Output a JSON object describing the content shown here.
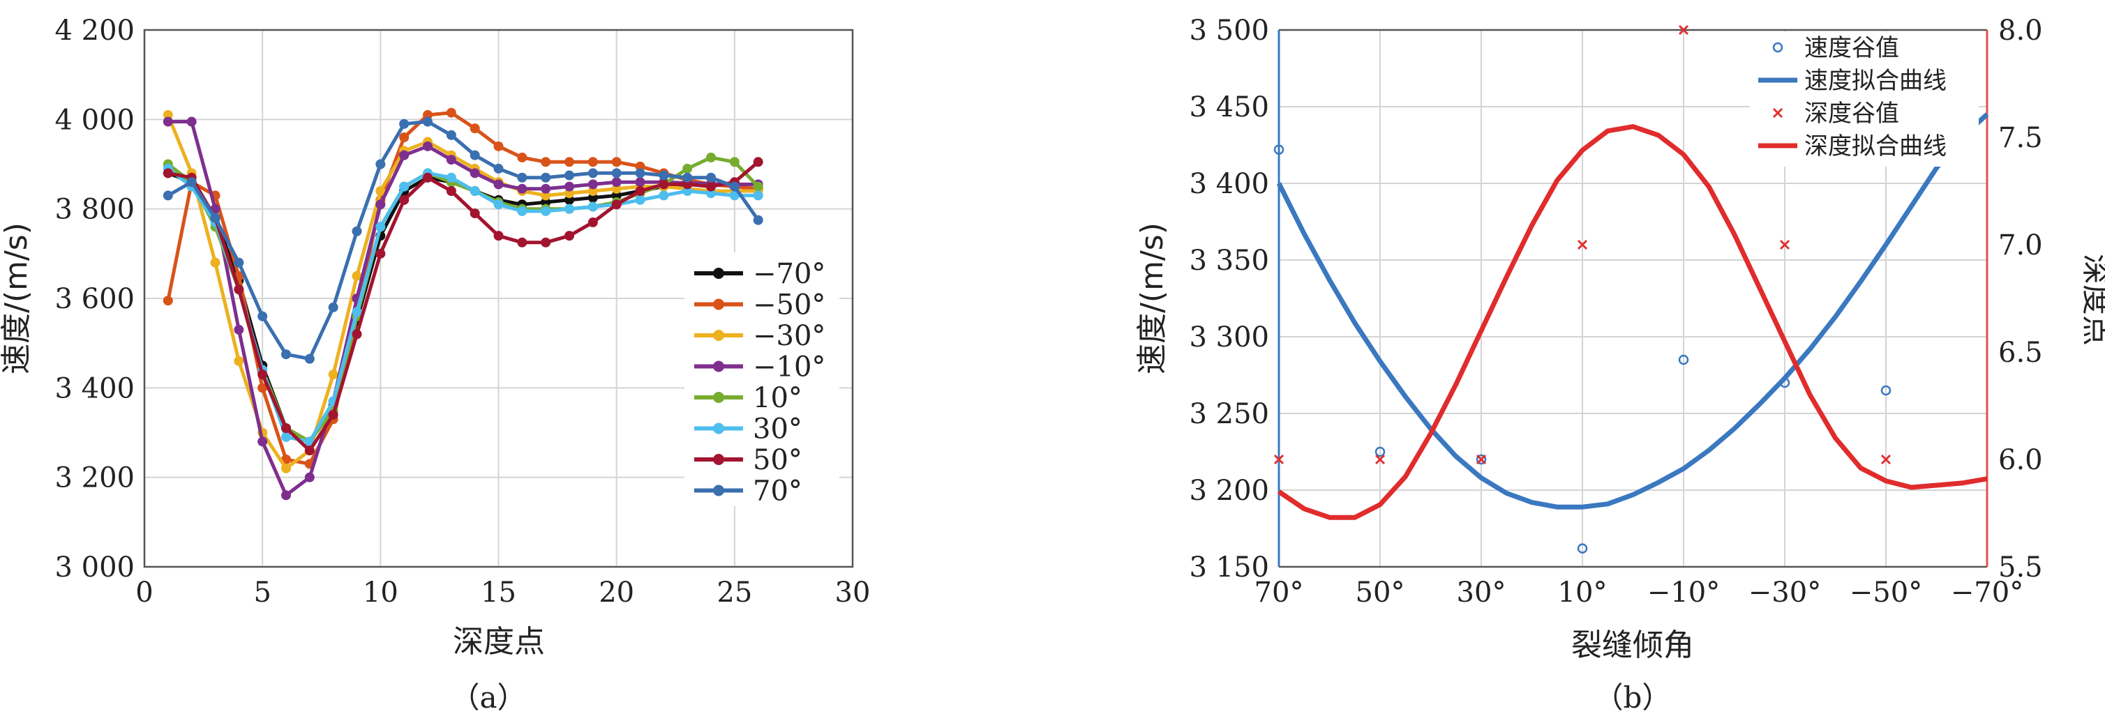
{
  "chart_data": [
    {
      "type": "line",
      "panel_label": "（a）",
      "xlabel": "深度点",
      "ylabel": "速度/(m/s)",
      "xlim": [
        0,
        30
      ],
      "ylim": [
        3000,
        4200
      ],
      "x_ticks": [
        0,
        5,
        10,
        15,
        20,
        25,
        30
      ],
      "y_ticks": [
        3000,
        3200,
        3400,
        3600,
        3800,
        4000,
        4200
      ],
      "y_tick_labels": [
        "3 000",
        "3 200",
        "3 400",
        "3 600",
        "3 800",
        "4 000",
        "4 200"
      ],
      "grid": true,
      "legend_position": "right",
      "x": [
        1,
        2,
        3,
        4,
        5,
        6,
        7,
        8,
        9,
        10,
        11,
        12,
        13,
        14,
        15,
        16,
        17,
        18,
        19,
        20,
        21,
        22,
        23,
        24,
        25,
        26
      ],
      "series": [
        {
          "name": "−70°",
          "color": "#111111",
          "values": [
            3880,
            3860,
            3780,
            3640,
            3450,
            3310,
            3280,
            3360,
            3550,
            3740,
            3840,
            3870,
            3860,
            3840,
            3820,
            3810,
            3815,
            3820,
            3825,
            3830,
            3840,
            3850,
            3855,
            3855,
            3850,
            3845
          ]
        },
        {
          "name": "−50°",
          "color": "#d95319",
          "values": [
            3595,
            3860,
            3830,
            3650,
            3400,
            3240,
            3230,
            3330,
            3560,
            3820,
            3960,
            4010,
            4015,
            3980,
            3940,
            3915,
            3905,
            3905,
            3905,
            3905,
            3895,
            3880,
            3865,
            3855,
            3850,
            3845
          ]
        },
        {
          "name": "−30°",
          "color": "#edb120",
          "values": [
            4010,
            3880,
            3680,
            3460,
            3300,
            3220,
            3260,
            3430,
            3650,
            3840,
            3930,
            3950,
            3920,
            3890,
            3860,
            3840,
            3830,
            3835,
            3840,
            3845,
            3850,
            3850,
            3845,
            3840,
            3840,
            3840
          ]
        },
        {
          "name": "−10°",
          "color": "#7e2f8e",
          "values": [
            3995,
            3995,
            3800,
            3530,
            3280,
            3160,
            3200,
            3370,
            3600,
            3810,
            3920,
            3940,
            3910,
            3880,
            3855,
            3845,
            3845,
            3850,
            3855,
            3860,
            3860,
            3860,
            3858,
            3856,
            3855,
            3855
          ]
        },
        {
          "name": "10°",
          "color": "#77ac30",
          "values": [
            3900,
            3860,
            3760,
            3620,
            3440,
            3310,
            3280,
            3350,
            3560,
            3760,
            3850,
            3880,
            3860,
            3840,
            3815,
            3800,
            3800,
            3800,
            3805,
            3815,
            3835,
            3855,
            3890,
            3915,
            3905,
            3850
          ]
        },
        {
          "name": "30°",
          "color": "#4dbeee",
          "values": [
            3890,
            3850,
            3770,
            3620,
            3440,
            3290,
            3280,
            3370,
            3570,
            3760,
            3850,
            3880,
            3870,
            3840,
            3810,
            3795,
            3795,
            3800,
            3805,
            3810,
            3820,
            3830,
            3840,
            3835,
            3830,
            3830
          ]
        },
        {
          "name": "50°",
          "color": "#a2142f",
          "values": [
            3880,
            3870,
            3780,
            3620,
            3430,
            3310,
            3260,
            3340,
            3520,
            3700,
            3820,
            3870,
            3840,
            3790,
            3740,
            3725,
            3725,
            3740,
            3770,
            3810,
            3840,
            3855,
            3855,
            3850,
            3860,
            3905
          ]
        },
        {
          "name": "70°",
          "color": "#3a6fb0",
          "values": [
            3830,
            3860,
            3780,
            3680,
            3560,
            3475,
            3465,
            3580,
            3750,
            3900,
            3990,
            3995,
            3965,
            3920,
            3890,
            3870,
            3870,
            3875,
            3880,
            3880,
            3880,
            3875,
            3870,
            3870,
            3850,
            3775
          ]
        }
      ]
    },
    {
      "type": "scatter",
      "panel_label": "（b）",
      "xlabel": "裂缝倾角",
      "ylabel": "速度/(m/s)",
      "y2label": "深度点",
      "x_categories": [
        "70°",
        "50°",
        "30°",
        "10°",
        "−10°",
        "−30°",
        "−50°",
        "−70°"
      ],
      "x_values": [
        70,
        50,
        30,
        10,
        -10,
        -30,
        -50,
        -70
      ],
      "xlim": [
        70,
        -70
      ],
      "ylim": [
        3150,
        3500
      ],
      "y_ticks": [
        3150,
        3200,
        3250,
        3300,
        3350,
        3400,
        3450,
        3500
      ],
      "y_tick_labels": [
        "3 150",
        "3 200",
        "3 250",
        "3 300",
        "3 350",
        "3 400",
        "3 450",
        "3 500"
      ],
      "y2lim": [
        5.5,
        8.0
      ],
      "y2_ticks": [
        5.5,
        6.0,
        6.5,
        7.0,
        7.5,
        8.0
      ],
      "y2_tick_labels": [
        "5.5",
        "6.0",
        "6.5",
        "7.0",
        "7.5",
        "8.0"
      ],
      "grid": true,
      "legend_position": "top-right",
      "series": [
        {
          "name": "速度谷值",
          "kind": "marker-circle",
          "axis": "left",
          "color": "#3a78c0",
          "x": [
            70,
            50,
            30,
            10,
            -10,
            -30,
            -50
          ],
          "values": [
            3422,
            3225,
            3220,
            3162,
            3285,
            3270,
            3265
          ]
        },
        {
          "name": "速度拟合曲线",
          "kind": "line",
          "axis": "left",
          "color": "#3a78c0",
          "x": [
            70,
            65,
            60,
            55,
            50,
            45,
            40,
            35,
            30,
            25,
            20,
            15,
            10,
            5,
            0,
            -5,
            -10,
            -15,
            -20,
            -25,
            -30,
            -35,
            -40,
            -45,
            -50,
            -55,
            -60,
            -65,
            -70
          ],
          "values": [
            3400,
            3367,
            3337,
            3309,
            3284,
            3261,
            3240,
            3222,
            3208,
            3198,
            3192,
            3189,
            3189,
            3191,
            3197,
            3205,
            3214,
            3226,
            3240,
            3256,
            3273,
            3292,
            3313,
            3336,
            3360,
            3385,
            3410,
            3430,
            3445
          ]
        },
        {
          "name": "深度谷值",
          "kind": "marker-x",
          "axis": "right",
          "color": "#e03030",
          "x": [
            70,
            50,
            30,
            10,
            -10,
            -30,
            -50
          ],
          "values": [
            6.0,
            6.0,
            6.0,
            7.0,
            8.0,
            7.0,
            6.0
          ]
        },
        {
          "name": "深度拟合曲线",
          "kind": "line",
          "axis": "right",
          "color": "#e02c2c",
          "x": [
            70,
            65,
            60,
            55,
            50,
            45,
            40,
            35,
            30,
            25,
            20,
            15,
            10,
            5,
            0,
            -5,
            -10,
            -15,
            -20,
            -25,
            -30,
            -35,
            -40,
            -45,
            -50,
            -55,
            -60,
            -65,
            -70
          ],
          "values": [
            5.85,
            5.77,
            5.73,
            5.73,
            5.79,
            5.92,
            6.12,
            6.35,
            6.6,
            6.85,
            7.09,
            7.3,
            7.44,
            7.53,
            7.55,
            7.51,
            7.42,
            7.27,
            7.05,
            6.8,
            6.55,
            6.3,
            6.1,
            5.96,
            5.9,
            5.87,
            5.88,
            5.89,
            5.91
          ]
        }
      ]
    }
  ]
}
